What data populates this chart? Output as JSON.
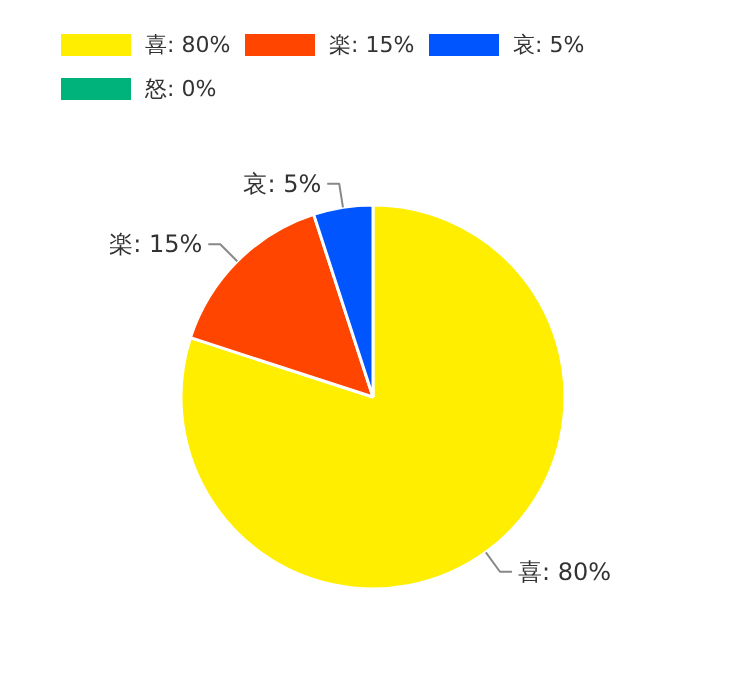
{
  "chart_data": {
    "type": "pie",
    "categories": [
      "喜",
      "楽",
      "哀",
      "怒"
    ],
    "values": [
      80,
      15,
      5,
      0
    ],
    "value_labels": [
      "80%",
      "15%",
      "5%",
      "0%"
    ],
    "colors": [
      "#ffee00",
      "#ff4500",
      "#0055ff",
      "#00b37a"
    ],
    "legend": "top left"
  }
}
